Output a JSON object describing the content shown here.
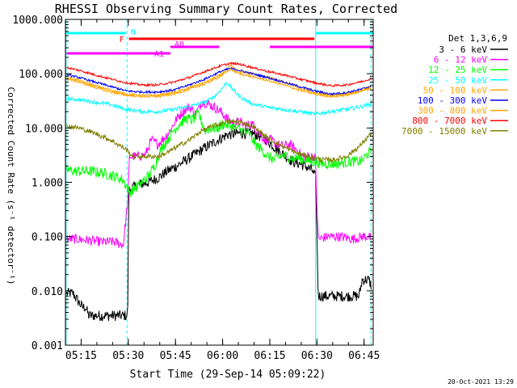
{
  "chart_data": {
    "type": "line",
    "title": "RHESSI Observing Summary Count Rates, Corrected",
    "xlabel": "Start Time (29-Sep-14 05:09:22)",
    "ylabel": "Corrected Count Rate (s⁻¹ detector⁻¹)",
    "ylog": true,
    "ylim": [
      0.001,
      1000
    ],
    "xlim_minutes": [
      0.6,
      98.5
    ],
    "x_ticks": [
      {
        "label": "05:15",
        "min": 5.6
      },
      {
        "label": "05:30",
        "min": 20.6
      },
      {
        "label": "05:45",
        "min": 35.6
      },
      {
        "label": "06:00",
        "min": 50.6
      },
      {
        "label": "06:15",
        "min": 65.6
      },
      {
        "label": "06:30",
        "min": 80.6
      },
      {
        "label": "06:45",
        "min": 95.6
      }
    ],
    "y_ticks": [
      {
        "label": "1000.000",
        "value": 1000
      },
      {
        "label": "100.000",
        "value": 100
      },
      {
        "label": "10.000",
        "value": 10
      },
      {
        "label": "1.000",
        "value": 1
      },
      {
        "label": "0.100",
        "value": 0.1
      },
      {
        "label": "0.010",
        "value": 0.01
      },
      {
        "label": "0.001",
        "value": 0.001
      }
    ],
    "legend_title": "Det 1,3,6,9",
    "legend_placement": "right",
    "series": [
      {
        "name": "3 - 6 keV",
        "color": "#000000",
        "x": [
          1,
          3,
          5,
          6,
          7,
          8,
          9,
          12,
          14,
          17,
          19,
          20.4,
          20.8,
          22,
          24,
          27,
          30,
          33,
          36,
          40,
          44,
          48,
          52,
          56,
          60,
          64,
          67,
          70,
          73,
          76,
          79,
          80.2,
          81,
          82,
          84,
          90,
          94,
          95,
          97,
          98
        ],
        "y": [
          0.009,
          0.009,
          0.006,
          0.005,
          0.005,
          0.0035,
          0.0035,
          0.0035,
          0.0035,
          0.0035,
          0.0035,
          0.0035,
          0.7,
          0.8,
          0.9,
          1.0,
          1.2,
          1.6,
          2.0,
          2.8,
          4.0,
          5.5,
          7.5,
          8,
          8,
          6.5,
          4.5,
          3.2,
          2.4,
          2.1,
          1.7,
          1.2,
          0.008,
          0.008,
          0.008,
          0.008,
          0.008,
          0.016,
          0.016,
          0.012
        ]
      },
      {
        "name": "6 - 12 keV",
        "color": "#ff00ff",
        "x": [
          1,
          4,
          8,
          12,
          16,
          19,
          20.5,
          21,
          22,
          24,
          26,
          28,
          30,
          32,
          34,
          36,
          38,
          40,
          42,
          44,
          46,
          48,
          50,
          52,
          54,
          56,
          58,
          60,
          62,
          64,
          66,
          68,
          70,
          72,
          74,
          76,
          78,
          80,
          80.3,
          81,
          84,
          88,
          92,
          95,
          97,
          98
        ],
        "y": [
          0.09,
          0.09,
          0.085,
          0.08,
          0.08,
          0.07,
          0.5,
          3.0,
          3.0,
          3.0,
          3.2,
          6,
          5,
          6.5,
          9,
          15,
          20,
          25,
          18,
          30,
          28,
          24,
          20,
          15,
          12,
          13,
          11,
          12,
          8.5,
          6,
          6,
          5,
          4.6,
          5,
          4,
          3,
          3,
          3,
          1.2,
          0.09,
          0.1,
          0.1,
          0.09,
          0.1,
          0.1,
          0.09
        ]
      },
      {
        "name": "12 - 25 keV",
        "color": "#00ff00",
        "x": [
          1,
          4,
          8,
          12,
          16,
          19,
          21,
          23,
          25,
          27,
          29,
          31,
          33,
          35,
          37,
          39,
          41,
          43,
          45,
          47,
          49,
          51,
          53,
          55,
          57,
          59,
          61,
          63,
          65,
          67,
          69,
          71,
          73,
          75,
          77,
          79,
          81,
          83,
          85,
          87,
          89,
          91,
          93,
          95,
          97,
          98
        ],
        "y": [
          1.7,
          1.6,
          1.6,
          1.5,
          1.3,
          1.1,
          0.65,
          0.8,
          1.0,
          1.3,
          2.0,
          4.0,
          6.0,
          9.0,
          12,
          15,
          14,
          18,
          9.0,
          10,
          10,
          12,
          11,
          10,
          9.0,
          8.0,
          5.0,
          4.0,
          3.0,
          2.6,
          3.0,
          3.0,
          2.8,
          2.8,
          2.6,
          2.4,
          2.3,
          2.2,
          2.2,
          2.2,
          2.3,
          2.4,
          2.4,
          2.5,
          3.5,
          3.5
        ]
      },
      {
        "name": "25 - 50 keV",
        "color": "#00ffff",
        "x": [
          1,
          5,
          10,
          15,
          20,
          25,
          30,
          35,
          40,
          45,
          48,
          50,
          52,
          54,
          56,
          60,
          65,
          70,
          75,
          80,
          85,
          90,
          95,
          98
        ],
        "y": [
          35,
          33,
          30,
          27,
          22,
          20,
          20,
          22,
          25,
          30,
          38,
          50,
          70,
          50,
          38,
          28,
          24,
          22,
          20,
          18,
          20,
          22,
          25,
          28
        ]
      },
      {
        "name": "50 - 100 keV",
        "color": "#ffa500",
        "x": [
          1,
          5,
          10,
          15,
          20,
          25,
          30,
          35,
          40,
          45,
          50,
          53,
          56,
          60,
          65,
          70,
          75,
          80,
          85,
          90,
          95,
          98
        ],
        "y": [
          85,
          75,
          60,
          50,
          42,
          40,
          40,
          45,
          55,
          70,
          95,
          140,
          110,
          100,
          85,
          70,
          55,
          45,
          40,
          42,
          50,
          58
        ]
      },
      {
        "name": "100 - 300 keV",
        "color": "#0000ff",
        "x": [
          1,
          5,
          10,
          15,
          20,
          25,
          30,
          35,
          40,
          45,
          50,
          53,
          56,
          60,
          65,
          70,
          75,
          80,
          85,
          90,
          95,
          98
        ],
        "y": [
          95,
          85,
          70,
          58,
          48,
          46,
          46,
          50,
          62,
          80,
          110,
          125,
          115,
          100,
          85,
          70,
          58,
          48,
          42,
          45,
          52,
          60
        ]
      },
      {
        "name": "300 - 800 keV",
        "color": "#ffa500",
        "x": [
          1,
          5,
          10,
          15,
          20,
          25,
          30,
          35,
          40,
          45,
          50,
          53,
          56,
          60,
          65,
          70,
          75,
          80,
          85,
          90,
          95,
          98
        ],
        "y": [
          80,
          70,
          56,
          46,
          40,
          38,
          38,
          42,
          52,
          65,
          90,
          120,
          100,
          88,
          75,
          62,
          50,
          42,
          38,
          40,
          48,
          55
        ]
      },
      {
        "name": "800 - 7000 keV",
        "color": "#ff0000",
        "x": [
          1,
          5,
          10,
          15,
          20,
          25,
          30,
          35,
          40,
          45,
          50,
          53,
          56,
          60,
          65,
          70,
          75,
          80,
          85,
          90,
          95,
          98
        ],
        "y": [
          130,
          115,
          95,
          80,
          68,
          62,
          62,
          70,
          85,
          110,
          140,
          155,
          150,
          130,
          110,
          95,
          80,
          68,
          60,
          62,
          72,
          82
        ]
      },
      {
        "name": "7000 - 15000 keV",
        "color": "#808000",
        "x": [
          1,
          5,
          10,
          15,
          20,
          22,
          25,
          28,
          30,
          33,
          36,
          40,
          44,
          48,
          52,
          56,
          60,
          63,
          66,
          70,
          74,
          78,
          82,
          86,
          90,
          94,
          97,
          98
        ],
        "y": [
          11,
          10,
          8,
          6,
          4,
          3,
          3,
          3,
          3,
          3.5,
          4.5,
          6,
          9,
          11,
          13,
          13,
          11,
          8,
          6,
          4.5,
          3.5,
          3,
          2.6,
          2.6,
          3,
          4.5,
          7,
          8
        ]
      }
    ],
    "state_bars": [
      {
        "label": "N",
        "color": "#00ffff",
        "segments": [
          [
            1,
            19.8
          ],
          [
            80.2,
            98.5
          ]
        ]
      },
      {
        "label": "F",
        "color": "#ff0000",
        "segments": [
          [
            20.8,
            79.8
          ]
        ]
      },
      {
        "label": "A0",
        "color": "#ff00ff",
        "segments": [
          [
            34,
            49.5
          ],
          [
            65.6,
            98.5
          ]
        ]
      },
      {
        "label": "A1",
        "color": "#ff00ff",
        "segments": [
          [
            1,
            34
          ]
        ]
      }
    ],
    "state_line_colors": {
      "day_night": "#00ffff",
      "attenuator": "#ff00ff"
    },
    "vlines": [
      {
        "min": 0.8,
        "color": "#00ffff",
        "style": "solid"
      },
      {
        "min": 20.2,
        "color": "#00ffff",
        "style": "dashed"
      },
      {
        "min": 80.2,
        "color": "#00ffff",
        "style": "solid"
      },
      {
        "min": 97.8,
        "color": "#00ffff",
        "style": "dashed"
      }
    ],
    "footer_date": "20-Oct-2021 13:29"
  }
}
